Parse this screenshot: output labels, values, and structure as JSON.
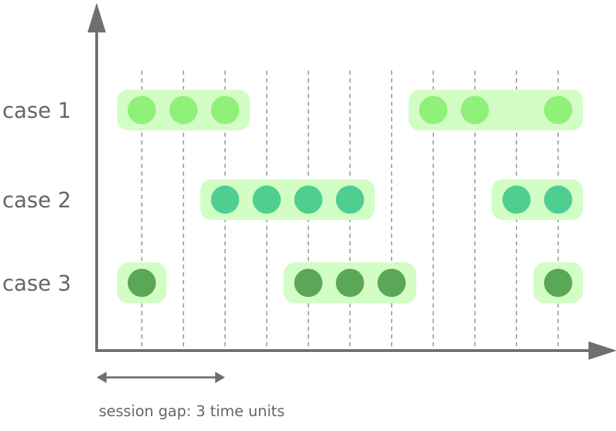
{
  "cases": [
    {
      "label": "case 1",
      "color": "#8ff07a",
      "events": [
        1,
        2,
        3,
        8,
        9,
        11
      ],
      "sessions": [
        [
          1,
          3
        ],
        [
          8,
          11
        ]
      ]
    },
    {
      "label": "case 2",
      "color": "#4ecf8f",
      "events": [
        3,
        4,
        5,
        6,
        10,
        11
      ],
      "sessions": [
        [
          3,
          6
        ],
        [
          10,
          11
        ]
      ]
    },
    {
      "label": "case 3",
      "color": "#5aa857",
      "events": [
        1,
        5,
        6,
        7,
        11
      ],
      "sessions": [
        [
          1,
          1
        ],
        [
          5,
          7
        ],
        [
          11,
          11
        ]
      ]
    }
  ],
  "time_ticks": [
    1,
    2,
    3,
    4,
    5,
    6,
    7,
    8,
    9,
    10,
    11
  ],
  "session_gap": {
    "label": "session gap: 3 time units",
    "units": 3
  },
  "colors": {
    "session_band": "#d2fdc4",
    "axis": "#6f6f6f",
    "gridline": "#555555",
    "text": "#666666"
  }
}
